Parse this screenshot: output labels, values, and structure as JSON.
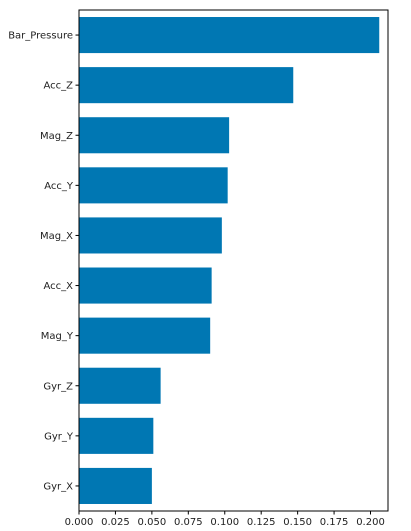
{
  "chart_data": {
    "type": "bar",
    "orientation": "horizontal",
    "title": "",
    "xlabel": "",
    "ylabel": "",
    "categories": [
      "Bar_Pressure",
      "Acc_Z",
      "Mag_Z",
      "Acc_Y",
      "Mag_X",
      "Acc_X",
      "Mag_Y",
      "Gyr_Z",
      "Gyr_Y",
      "Gyr_X"
    ],
    "values": [
      0.206,
      0.147,
      0.103,
      0.102,
      0.098,
      0.091,
      0.09,
      0.056,
      0.051,
      0.05
    ],
    "xlim": [
      0,
      0.212
    ],
    "xticks": [
      "0.000",
      "0.025",
      "0.050",
      "0.075",
      "0.100",
      "0.125",
      "0.150",
      "0.175",
      "0.200"
    ],
    "bar_color": "#0077b3",
    "grid": false
  }
}
